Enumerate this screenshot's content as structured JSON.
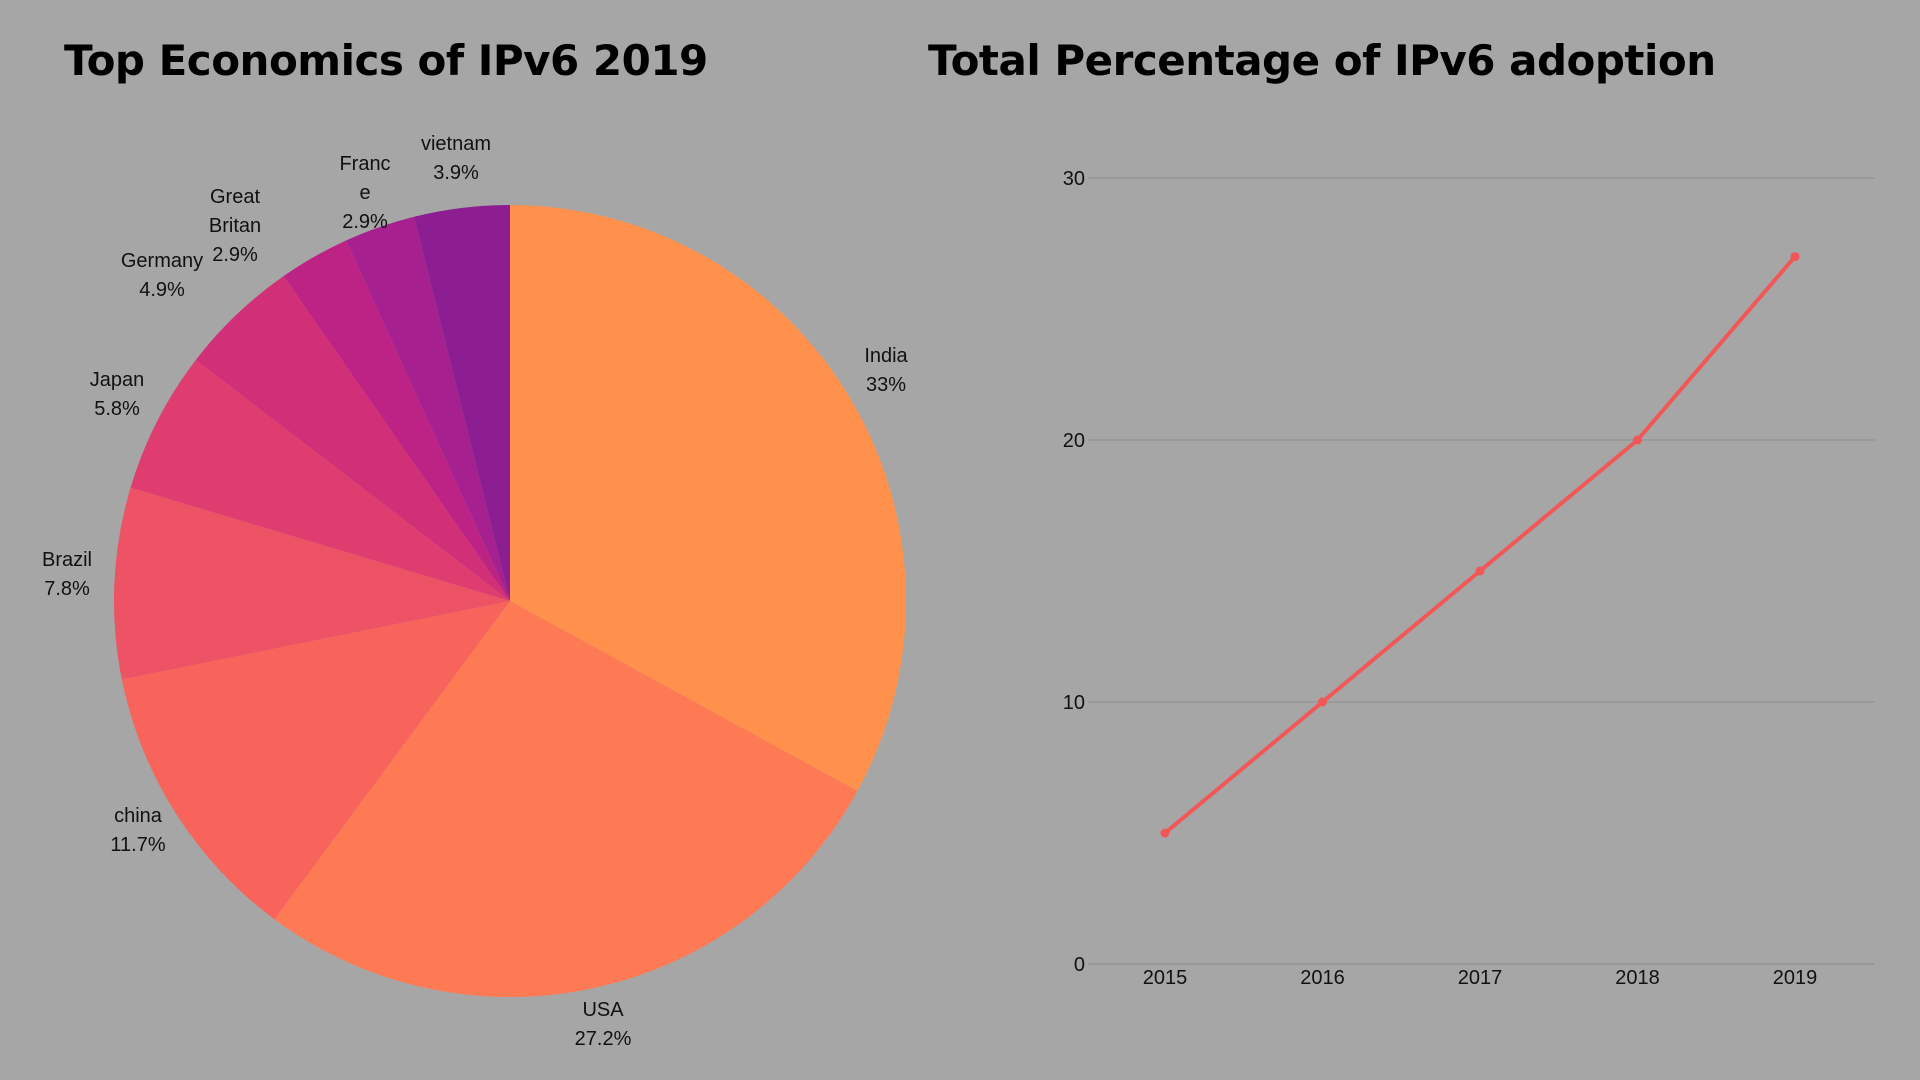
{
  "chart_data": [
    {
      "type": "pie",
      "title": "Top Economics of IPv6 2019",
      "slices": [
        {
          "label": "India",
          "value": 33,
          "value_label": "33%",
          "color": "#ff914d"
        },
        {
          "label": "USA",
          "value": 27.2,
          "value_label": "27.2%",
          "color": "#fe7a55"
        },
        {
          "label": "china",
          "value": 11.7,
          "value_label": "11.7%",
          "color": "#f8645c"
        },
        {
          "label": "Brazil",
          "value": 7.8,
          "value_label": "7.8%",
          "color": "#ed5265"
        },
        {
          "label": "Japan",
          "value": 5.8,
          "value_label": "5.8%",
          "color": "#df3d6f"
        },
        {
          "label": "Germany",
          "value": 4.9,
          "value_label": "4.9%",
          "color": "#d12f78"
        },
        {
          "label": "Great Britan",
          "value": 2.9,
          "value_label": "2.9%",
          "color": "#bd2384"
        },
        {
          "label": "France",
          "value": 2.9,
          "value_label": "2.9%",
          "color": "#a6218f"
        },
        {
          "label": "vietnam",
          "value": 3.9,
          "value_label": "3.9%",
          "color": "#8c1e92"
        }
      ]
    },
    {
      "type": "line",
      "title": "Total Percentage of IPv6 adoption",
      "x": [
        2015,
        2016,
        2017,
        2018,
        2019
      ],
      "series": [
        {
          "values": [
            5,
            10,
            15,
            20,
            27
          ],
          "color": "#f25757"
        }
      ],
      "ylim": [
        0,
        30
      ],
      "yticks": [
        0,
        10,
        20,
        30
      ],
      "grid": true
    }
  ]
}
